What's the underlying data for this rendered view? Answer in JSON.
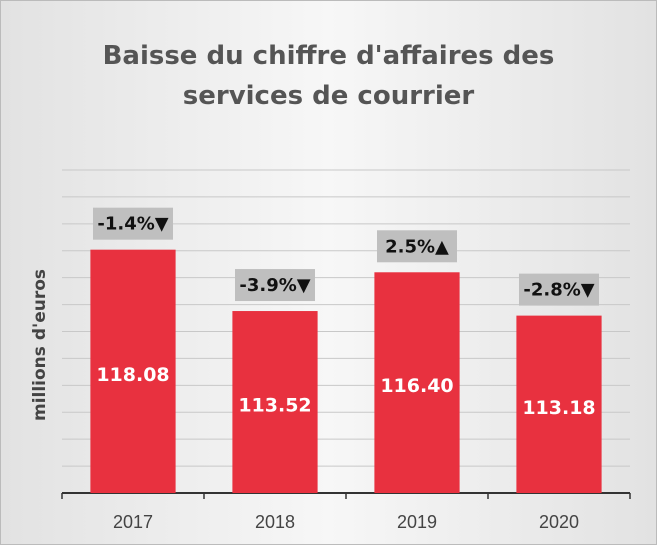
{
  "chart_data": {
    "type": "bar",
    "title": "Baisse du chiffre d'affaires des services de courrier",
    "y_label": "millions d'euros",
    "categories": [
      "2017",
      "2018",
      "2019",
      "2020"
    ],
    "values": [
      118.08,
      113.52,
      116.4,
      113.18
    ],
    "value_labels": [
      "118.08",
      "113.52",
      "116.40",
      "113.18"
    ],
    "annotations": [
      "-1.4%▼",
      "-3.9%▼",
      "2.5%▲",
      "-2.8%▼"
    ],
    "color": "#e8313f",
    "ylim": [
      100,
      124
    ],
    "yticks": [
      100,
      102,
      104,
      106,
      108,
      110,
      112,
      114,
      116,
      118,
      120,
      122,
      124
    ],
    "grid": true
  }
}
